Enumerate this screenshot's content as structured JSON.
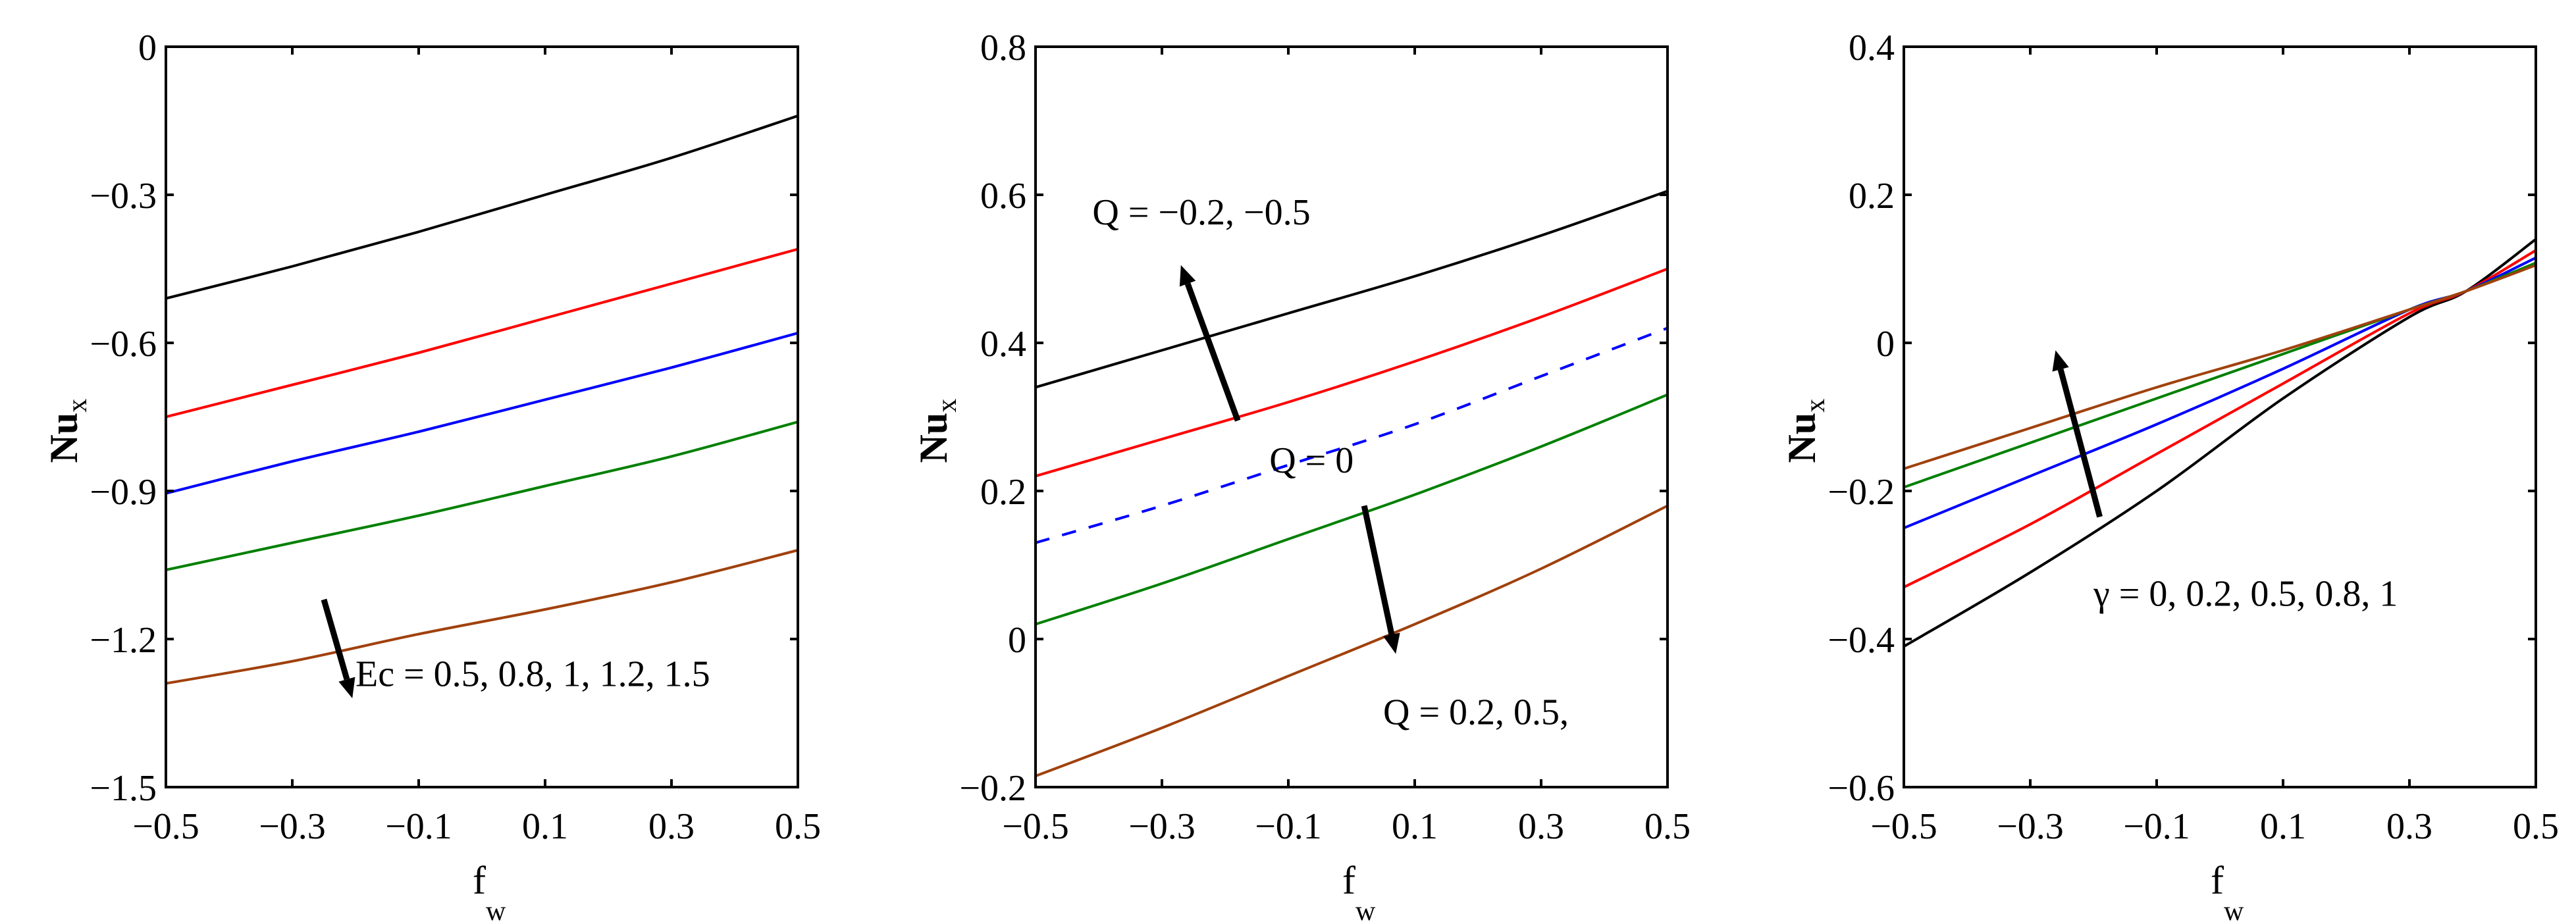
{
  "chart_data": [
    {
      "type": "line",
      "title": "",
      "xlabel": "f_w",
      "ylabel": "Nu_x",
      "xlim": [
        -0.5,
        0.5
      ],
      "ylim": [
        -1.5,
        0
      ],
      "grid": false,
      "xticks": [
        -0.5,
        -0.3,
        -0.1,
        0.1,
        0.3,
        0.5
      ],
      "xtick_labels": [
        "−0.5",
        "−0.3",
        "−0.1",
        "0.1",
        "0.3",
        "0.5"
      ],
      "yticks": [
        -1.5,
        -1.2,
        -0.9,
        -0.6,
        -0.3,
        0
      ],
      "ytick_labels": [
        "−1.5",
        "−1.2",
        "−0.9",
        "−0.6",
        "−0.3",
        "0"
      ],
      "x": [
        -0.5,
        -0.3,
        -0.1,
        0.1,
        0.3,
        0.5
      ],
      "series": [
        {
          "name": "Ec = 0.5",
          "color": "#000000",
          "dash": false,
          "values": [
            -0.51,
            -0.445,
            -0.375,
            -0.3,
            -0.225,
            -0.14
          ]
        },
        {
          "name": "Ec = 0.8",
          "color": "#ff0000",
          "dash": false,
          "values": [
            -0.75,
            -0.685,
            -0.62,
            -0.55,
            -0.48,
            -0.41
          ]
        },
        {
          "name": "Ec = 1",
          "color": "#0000ff",
          "dash": false,
          "values": [
            -0.905,
            -0.84,
            -0.78,
            -0.715,
            -0.65,
            -0.58
          ]
        },
        {
          "name": "Ec = 1.2",
          "color": "#008000",
          "dash": false,
          "values": [
            -1.06,
            -1.005,
            -0.95,
            -0.89,
            -0.83,
            -0.76
          ]
        },
        {
          "name": "Ec = 1.5",
          "color": "#a0410d",
          "dash": false,
          "values": [
            -1.29,
            -1.245,
            -1.19,
            -1.14,
            -1.085,
            -1.02
          ]
        }
      ],
      "annotations": [
        {
          "text": "Ec = 0.5, 0.8, 1, 1.2, 1.5",
          "arrow": "down",
          "arrow_from": [
            -0.25,
            -1.12
          ],
          "arrow_to": [
            -0.205,
            -1.32
          ],
          "text_at": [
            -0.2,
            -1.295
          ]
        }
      ]
    },
    {
      "type": "line",
      "title": "",
      "xlabel": "f_w",
      "ylabel": "Nu_x",
      "xlim": [
        -0.5,
        0.5
      ],
      "ylim": [
        -0.2,
        0.8
      ],
      "grid": false,
      "xticks": [
        -0.5,
        -0.3,
        -0.1,
        0.1,
        0.3,
        0.5
      ],
      "xtick_labels": [
        "−0.5",
        "−0.3",
        "−0.1",
        "0.1",
        "0.3",
        "0.5"
      ],
      "yticks": [
        -0.2,
        0,
        0.2,
        0.4,
        0.6,
        0.8
      ],
      "ytick_labels": [
        "−0.2",
        "0",
        "0.2",
        "0.4",
        "0.6",
        "0.8"
      ],
      "x": [
        -0.5,
        -0.3,
        -0.1,
        0.1,
        0.3,
        0.5
      ],
      "series": [
        {
          "name": "Q = -0.5",
          "color": "#000000",
          "dash": false,
          "values": [
            0.34,
            0.39,
            0.44,
            0.49,
            0.545,
            0.605
          ]
        },
        {
          "name": "Q = -0.2",
          "color": "#ff0000",
          "dash": false,
          "values": [
            0.22,
            0.27,
            0.32,
            0.375,
            0.435,
            0.5
          ]
        },
        {
          "name": "Q = 0",
          "color": "#0000ff",
          "dash": true,
          "values": [
            0.13,
            0.18,
            0.235,
            0.29,
            0.355,
            0.42
          ]
        },
        {
          "name": "Q = 0.2",
          "color": "#008000",
          "dash": false,
          "values": [
            0.02,
            0.075,
            0.135,
            0.195,
            0.26,
            0.33
          ]
        },
        {
          "name": "Q = 0.5",
          "color": "#a0410d",
          "dash": false,
          "values": [
            -0.185,
            -0.12,
            -0.05,
            0.02,
            0.095,
            0.18
          ]
        }
      ],
      "annotations": [
        {
          "text": "Q = −0.2, −0.5",
          "arrow": "up",
          "arrow_from": [
            -0.18,
            0.295
          ],
          "arrow_to": [
            -0.27,
            0.505
          ],
          "text_at": [
            -0.41,
            0.56
          ]
        },
        {
          "text": "Q = 0",
          "arrow": null,
          "text_at": [
            -0.13,
            0.225
          ]
        },
        {
          "text": "Q = 0.2, 0.5,",
          "arrow": "down",
          "arrow_from": [
            0.02,
            0.18
          ],
          "arrow_to": [
            0.07,
            -0.02
          ],
          "text_at": [
            0.05,
            -0.115
          ]
        }
      ]
    },
    {
      "type": "line",
      "title": "",
      "xlabel": "f_w",
      "ylabel": "Nu_x",
      "xlim": [
        -0.5,
        0.5
      ],
      "ylim": [
        -0.6,
        0.4
      ],
      "grid": false,
      "xticks": [
        -0.5,
        -0.3,
        -0.1,
        0.1,
        0.3,
        0.5
      ],
      "xtick_labels": [
        "−0.5",
        "−0.3",
        "−0.1",
        "0.1",
        "0.3",
        "0.5"
      ],
      "yticks": [
        -0.6,
        -0.4,
        -0.2,
        0,
        0.2,
        0.4
      ],
      "ytick_labels": [
        "−0.6",
        "−0.4",
        "−0.2",
        "0",
        "0.2",
        "0.4"
      ],
      "x": [
        -0.5,
        -0.3,
        -0.1,
        0.1,
        0.3,
        0.39,
        0.5
      ],
      "series": [
        {
          "name": "γ = 0",
          "color": "#000000",
          "dash": false,
          "values": [
            -0.41,
            -0.31,
            -0.2,
            -0.075,
            0.035,
            0.07,
            0.14
          ]
        },
        {
          "name": "γ = 0.2",
          "color": "#ff0000",
          "dash": false,
          "values": [
            -0.33,
            -0.245,
            -0.15,
            -0.055,
            0.04,
            0.07,
            0.125
          ]
        },
        {
          "name": "γ = 0.5",
          "color": "#0000ff",
          "dash": false,
          "values": [
            -0.25,
            -0.18,
            -0.11,
            -0.035,
            0.045,
            0.07,
            0.115
          ]
        },
        {
          "name": "γ = 0.8",
          "color": "#008000",
          "dash": false,
          "values": [
            -0.195,
            -0.135,
            -0.075,
            -0.015,
            0.045,
            0.07,
            0.108
          ]
        },
        {
          "name": "γ = 1",
          "color": "#a0410d",
          "dash": false,
          "values": [
            -0.17,
            -0.115,
            -0.06,
            -0.01,
            0.045,
            0.07,
            0.105
          ]
        }
      ],
      "annotations": [
        {
          "text": "γ = 0, 0.2, 0.5, 0.8, 1",
          "arrow": "up",
          "arrow_from": [
            -0.19,
            -0.235
          ],
          "arrow_to": [
            -0.26,
            -0.01
          ],
          "text_at": [
            -0.2,
            -0.355
          ]
        }
      ]
    }
  ],
  "panels": [
    {
      "ylabel_main": "Nu",
      "ylabel_sub": "x",
      "xlabel_main": "f",
      "xlabel_sub": "w",
      "annotations": [
        "Ec = 0.5, 0.8, 1, 1.2, 1.5"
      ]
    },
    {
      "ylabel_main": "Nu",
      "ylabel_sub": "x",
      "xlabel_main": "f",
      "xlabel_sub": "w",
      "annotations": [
        "Q = −0.2, −0.5",
        "Q = 0",
        "Q = 0.2, 0.5,"
      ]
    },
    {
      "ylabel_main": "Nu",
      "ylabel_sub": "x",
      "xlabel_main": "f",
      "xlabel_sub": "w",
      "annotations": [
        "γ = 0, 0.2, 0.5, 0.8, 1"
      ]
    }
  ],
  "colors": {
    "axis": "#000000",
    "black": "#000000",
    "red": "#ff0000",
    "blue": "#0000ff",
    "green": "#008000",
    "brown": "#a0410d"
  }
}
